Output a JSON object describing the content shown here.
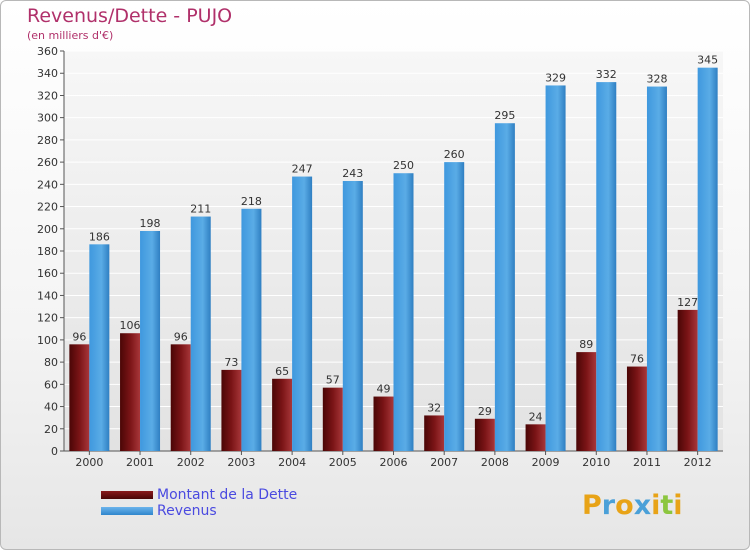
{
  "title": "Revenus/Dette - PUJO",
  "subtitle": "(en milliers d'€)",
  "logo": {
    "letters": [
      {
        "ch": "P",
        "color": "#e8a317"
      },
      {
        "ch": "r",
        "color": "#4aa0d8"
      },
      {
        "ch": "o",
        "color": "#e8a317"
      },
      {
        "ch": "x",
        "color": "#4aa0d8"
      },
      {
        "ch": "i",
        "color": "#e8a317"
      },
      {
        "ch": "t",
        "color": "#8cc63f"
      },
      {
        "ch": "i",
        "color": "#e8a317"
      }
    ]
  },
  "legend": {
    "items": [
      {
        "label": "Montant de la Dette",
        "color": "#6b0f10"
      },
      {
        "label": "Revenus",
        "color": "#3f98de"
      }
    ]
  },
  "chart_data": {
    "type": "bar",
    "title": "Revenus/Dette - PUJO",
    "ylabel": "(en milliers d'€)",
    "xlabel": "",
    "categories": [
      "2000",
      "2001",
      "2002",
      "2003",
      "2004",
      "2005",
      "2006",
      "2007",
      "2008",
      "2009",
      "2010",
      "2011",
      "2012"
    ],
    "series": [
      {
        "name": "Montant de la Dette",
        "color": "#6b0f10",
        "values": [
          96,
          106,
          96,
          73,
          65,
          57,
          49,
          32,
          29,
          24,
          89,
          76,
          127
        ]
      },
      {
        "name": "Revenus",
        "color": "#3f98de",
        "values": [
          186,
          198,
          211,
          218,
          247,
          243,
          250,
          260,
          295,
          329,
          332,
          328,
          345
        ]
      }
    ],
    "ylim": [
      0,
      360
    ],
    "ytick_step": 20,
    "grid": true,
    "legend_position": "bottom-left"
  }
}
